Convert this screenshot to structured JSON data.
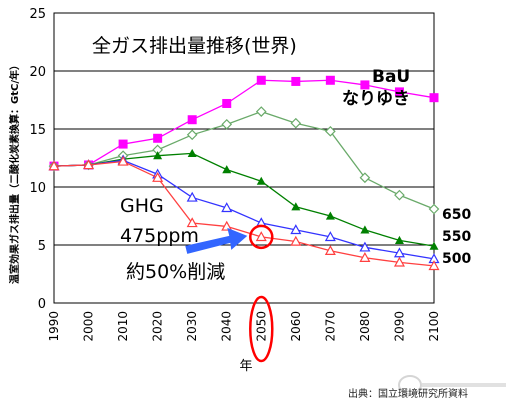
{
  "chart_data": {
    "type": "line",
    "title": "全ガス排出量推移(世界)",
    "xlabel": "年",
    "ylabel": "温室効果ガス排出量（二酸化炭素換算：GtC/年）",
    "x": [
      1990,
      2000,
      2010,
      2020,
      2030,
      2040,
      2050,
      2060,
      2070,
      2080,
      2090,
      2100
    ],
    "ylim": [
      0,
      25
    ],
    "yticks": [
      0,
      5,
      10,
      15,
      20,
      25
    ],
    "grid": true,
    "series": [
      {
        "name": "BaU なりゆき",
        "label_lines": [
          "BaU",
          "なりゆき"
        ],
        "color": "#ff00ff",
        "marker": "square",
        "values": [
          11.8,
          11.9,
          13.7,
          14.2,
          15.8,
          17.2,
          19.2,
          19.1,
          19.2,
          18.8,
          18.2,
          17.7
        ]
      },
      {
        "name": "650",
        "label_lines": [
          "650"
        ],
        "color": "#6aaa6a",
        "marker": "diamond",
        "values": [
          11.8,
          11.9,
          12.7,
          13.2,
          14.5,
          15.4,
          16.5,
          15.5,
          14.8,
          10.8,
          9.3,
          8.1
        ]
      },
      {
        "name": "550",
        "label_lines": [
          "550"
        ],
        "color": "#008000",
        "marker": "triangle",
        "values": [
          11.8,
          11.9,
          12.4,
          12.7,
          12.9,
          11.5,
          10.5,
          8.3,
          7.5,
          6.3,
          5.4,
          4.9
        ]
      },
      {
        "name": "500",
        "label_lines": [
          "500"
        ],
        "color": "#3333ff",
        "marker": "triangle-open",
        "values": [
          11.8,
          11.9,
          12.3,
          11.1,
          9.1,
          8.2,
          6.9,
          6.3,
          5.7,
          4.8,
          4.3,
          3.8
        ]
      },
      {
        "name": "GHG 475ppm",
        "label_lines": [
          "GHG",
          "475ppm"
        ],
        "color": "#ff4040",
        "marker": "triangle-open",
        "values": [
          11.8,
          11.9,
          12.2,
          10.8,
          6.9,
          6.6,
          5.7,
          5.3,
          4.5,
          3.9,
          3.5,
          3.2
        ]
      }
    ],
    "annotations": {
      "reduction_text": "約50%削減",
      "highlight_year": "2050"
    }
  },
  "colors": {
    "arrow": "#3366ff",
    "highlight_ring": "#ff0000",
    "grid": "#000000"
  },
  "source_text": "出典：国立環境研究所資料"
}
